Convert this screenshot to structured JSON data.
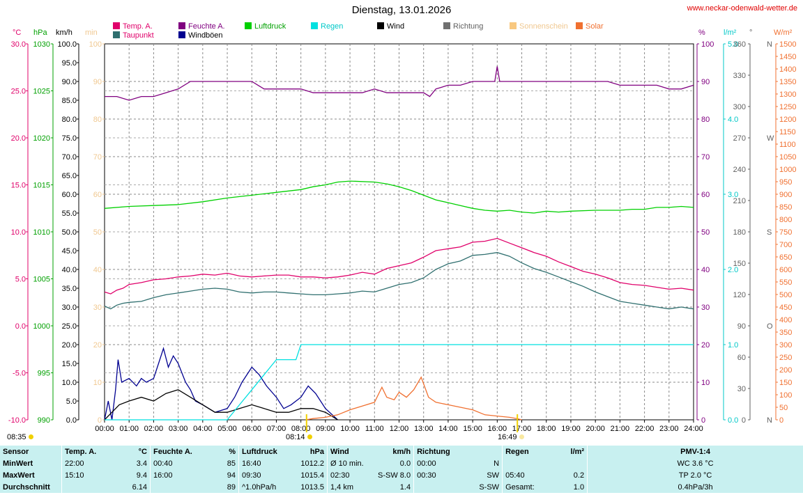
{
  "header": {
    "title": "Dienstag, 13.01.2026",
    "site": "www.neckar-odenwald-wetter.de"
  },
  "legend": [
    {
      "label": "Temp. A.",
      "color": "#e0006a",
      "text_color": "#e0006a"
    },
    {
      "label": "Taupunkt",
      "color": "#2f6f6f",
      "text_color": "#e0006a"
    },
    {
      "label": "Feuchte A.",
      "color": "#800080",
      "text_color": "#800080"
    },
    {
      "label": "Windböen",
      "color": "#000090",
      "text_color": "#000000"
    },
    {
      "label": "Luftdruck",
      "color": "#00d000",
      "text_color": "#00a000"
    },
    {
      "label": "Regen",
      "color": "#00e0e0",
      "text_color": "#00c8c8"
    },
    {
      "label": "Wind",
      "color": "#000000",
      "text_color": "#000000"
    },
    {
      "label": "Richtung",
      "color": "#707070",
      "text_color": "#606060"
    },
    {
      "label": "Sonnenschein",
      "color": "#f8c880",
      "text_color": "#f0c890"
    },
    {
      "label": "Solar",
      "color": "#f07030",
      "text_color": "#f07030"
    }
  ],
  "axes": {
    "units": {
      "temp": "°C",
      "hpa": "hPa",
      "kmh": "km/h",
      "min": "min",
      "pct": "%",
      "lm2": "l/m²",
      "deg": "°",
      "wm2": "W/m²"
    },
    "temp_ticks": [
      "30.0",
      "25.0",
      "20.0",
      "15.0",
      "10.0",
      "5.0",
      "0.0",
      "-5.0",
      "-10.0"
    ],
    "hpa_ticks": [
      "1030",
      "1025",
      "1020",
      "1015",
      "1010",
      "1005",
      "1000",
      "995",
      "990"
    ],
    "kmh_ticks": [
      "100.0",
      "95.0",
      "90.0",
      "85.0",
      "80.0",
      "75.0",
      "70.0",
      "65.0",
      "60.0",
      "55.0",
      "50.0",
      "45.0",
      "40.0",
      "35.0",
      "30.0",
      "25.0",
      "20.0",
      "15.0",
      "10.0",
      "5.0",
      "0.0"
    ],
    "min_ticks": [
      "100",
      "90",
      "80",
      "70",
      "60",
      "50",
      "40",
      "30",
      "20",
      "10",
      "0"
    ],
    "pct_ticks": [
      "100",
      "90",
      "80",
      "70",
      "60",
      "50",
      "40",
      "30",
      "20",
      "10",
      "0"
    ],
    "lm2_ticks": [
      "5.0",
      "4.0",
      "3.0",
      "2.0",
      "1.0",
      "0.0"
    ],
    "deg_ticks": [
      "360",
      "330",
      "300",
      "270",
      "240",
      "210",
      "180",
      "150",
      "120",
      "90",
      "60",
      "30",
      "0"
    ],
    "deg_compass": [
      "N",
      "",
      "",
      "W",
      "",
      "",
      "S",
      "",
      "",
      "O",
      "",
      "",
      "N"
    ],
    "wm2_ticks": [
      "1500",
      "1450",
      "1400",
      "1350",
      "1300",
      "1250",
      "1200",
      "1150",
      "1100",
      "1050",
      "1000",
      "950",
      "900",
      "850",
      "800",
      "750",
      "700",
      "650",
      "600",
      "550",
      "500",
      "450",
      "400",
      "350",
      "300",
      "250",
      "200",
      "150",
      "100",
      "50",
      "0"
    ],
    "time_ticks": [
      "00:00",
      "01:00",
      "02:00",
      "03:00",
      "04:00",
      "05:00",
      "06:00",
      "07:00",
      "08:00",
      "09:00",
      "10:00",
      "11:00",
      "12:00",
      "13:00",
      "14:00",
      "15:00",
      "16:00",
      "17:00",
      "18:00",
      "19:00",
      "20:00",
      "21:00",
      "22:00",
      "23:00",
      "24:00"
    ]
  },
  "markers": {
    "sunrise": "08:14",
    "sunset": "16:49",
    "sunshine": "08:35"
  },
  "chart_data": {
    "type": "line",
    "x_unit": "hours",
    "xlim": [
      0,
      24
    ],
    "series": [
      {
        "name": "Temp. A.",
        "unit": "°C",
        "color": "#e0006a",
        "x": [
          0,
          0.25,
          0.5,
          0.75,
          1,
          1.5,
          2,
          2.5,
          3,
          3.5,
          4,
          4.5,
          5,
          5.5,
          6,
          6.5,
          7,
          7.5,
          8,
          8.5,
          9,
          9.5,
          10,
          10.5,
          11,
          11.5,
          12,
          12.5,
          13,
          13.5,
          14,
          14.5,
          15,
          15.5,
          16,
          16.5,
          17,
          17.5,
          18,
          18.5,
          19,
          19.5,
          20,
          20.5,
          21,
          21.5,
          22,
          22.5,
          23,
          23.5,
          24
        ],
        "y": [
          3.6,
          3.4,
          3.8,
          4.0,
          4.4,
          4.6,
          4.9,
          5.0,
          5.2,
          5.3,
          5.5,
          5.4,
          5.6,
          5.3,
          5.2,
          5.3,
          5.4,
          5.4,
          5.2,
          5.2,
          5.1,
          5.2,
          5.4,
          5.7,
          5.5,
          6.1,
          6.4,
          6.7,
          7.3,
          8.0,
          8.2,
          8.4,
          8.9,
          9.0,
          9.3,
          8.8,
          8.3,
          7.8,
          7.4,
          6.8,
          6.3,
          5.8,
          5.5,
          5.1,
          4.6,
          4.4,
          4.3,
          4.1,
          3.9,
          4.0,
          3.8
        ]
      },
      {
        "name": "Taupunkt",
        "unit": "°C",
        "color": "#2f6f6f",
        "x": [
          0,
          0.25,
          0.5,
          0.75,
          1,
          1.5,
          2,
          2.5,
          3,
          3.5,
          4,
          4.5,
          5,
          5.5,
          6,
          6.5,
          7,
          7.5,
          8,
          8.5,
          9,
          9.5,
          10,
          10.5,
          11,
          11.5,
          12,
          12.5,
          13,
          13.5,
          14,
          14.5,
          15,
          15.5,
          16,
          16.5,
          17,
          17.5,
          18,
          18.5,
          19,
          19.5,
          20,
          20.5,
          21,
          21.5,
          22,
          22.5,
          23,
          23.5,
          24
        ],
        "y": [
          2.1,
          1.8,
          2.2,
          2.4,
          2.5,
          2.6,
          3.0,
          3.3,
          3.5,
          3.7,
          3.9,
          4.0,
          3.9,
          3.6,
          3.5,
          3.6,
          3.6,
          3.5,
          3.4,
          3.3,
          3.3,
          3.4,
          3.5,
          3.7,
          3.6,
          4.0,
          4.4,
          4.6,
          5.1,
          6.0,
          6.6,
          6.9,
          7.5,
          7.6,
          7.8,
          7.4,
          6.7,
          6.1,
          5.7,
          5.2,
          4.7,
          4.2,
          3.6,
          3.1,
          2.6,
          2.4,
          2.2,
          2.0,
          1.8,
          2.0,
          1.8
        ]
      },
      {
        "name": "Feuchte A.",
        "unit": "%",
        "color": "#800080",
        "x": [
          0,
          0.5,
          1,
          1.5,
          2,
          2.5,
          3,
          3.5,
          4,
          4.5,
          5,
          5.5,
          6,
          6.25,
          6.5,
          7,
          7.5,
          8,
          8.5,
          9,
          9.5,
          10,
          10.5,
          11,
          11.5,
          12,
          12.5,
          13,
          13.25,
          13.5,
          14,
          14.5,
          15,
          15.5,
          15.9,
          16,
          16.1,
          16.5,
          17,
          17.5,
          18,
          18.5,
          19,
          19.5,
          20,
          20.5,
          21,
          21.5,
          22,
          22.5,
          23,
          23.5,
          24
        ],
        "y": [
          86,
          86,
          85,
          86,
          86,
          87,
          88,
          90,
          90,
          90,
          90,
          90,
          90,
          89,
          88,
          88,
          88,
          88,
          87,
          87,
          87,
          87,
          87,
          88,
          87,
          87,
          87,
          87,
          86,
          88,
          89,
          89,
          90,
          90,
          90,
          94,
          90,
          90,
          90,
          90,
          90,
          90,
          90,
          90,
          90,
          90,
          89,
          89,
          89,
          89,
          88,
          88,
          89
        ]
      },
      {
        "name": "Luftdruck",
        "unit": "hPa",
        "color": "#00d000",
        "x": [
          0,
          1,
          2,
          3,
          4,
          5,
          6,
          7,
          8,
          8.5,
          9,
          9.5,
          10,
          11,
          11.5,
          12,
          12.5,
          13,
          13.5,
          14,
          14.5,
          15,
          15.5,
          16,
          16.5,
          17,
          17.5,
          18,
          18.5,
          19,
          20,
          21,
          21.5,
          22,
          22.5,
          23,
          23.5,
          24
        ],
        "y": [
          1012.5,
          1012.7,
          1012.8,
          1012.9,
          1013.2,
          1013.6,
          1013.9,
          1014.2,
          1014.5,
          1014.8,
          1015.0,
          1015.3,
          1015.4,
          1015.3,
          1015.1,
          1014.8,
          1014.4,
          1013.9,
          1013.4,
          1013.1,
          1012.8,
          1012.5,
          1012.3,
          1012.2,
          1012.3,
          1012.1,
          1012.0,
          1012.2,
          1012.1,
          1012.2,
          1012.3,
          1012.3,
          1012.4,
          1012.4,
          1012.6,
          1012.6,
          1012.7,
          1012.6
        ]
      },
      {
        "name": "Windböen",
        "unit": "km/h",
        "color": "#000090",
        "x": [
          0,
          0.15,
          0.3,
          0.45,
          0.55,
          0.7,
          1,
          1.3,
          1.5,
          1.7,
          2,
          2.2,
          2.4,
          2.6,
          2.8,
          3,
          3.3,
          3.5,
          3.7,
          4,
          4.5,
          5,
          5.3,
          5.6,
          6,
          6.3,
          6.6,
          7,
          7.3,
          7.6,
          8,
          8.3,
          8.6,
          9,
          9.5
        ],
        "y": [
          0,
          5,
          0,
          8,
          16,
          10,
          11,
          9,
          11,
          10,
          11,
          15,
          19,
          14,
          17,
          15,
          10,
          8,
          5,
          4,
          2,
          3,
          6,
          10,
          14,
          12,
          9,
          6,
          3,
          4,
          6,
          9,
          7,
          3,
          0
        ]
      },
      {
        "name": "Wind",
        "unit": "km/h",
        "color": "#000000",
        "x": [
          0,
          0.3,
          0.6,
          1,
          1.5,
          2,
          2.5,
          3,
          3.5,
          4,
          4.5,
          5,
          5.5,
          6,
          6.5,
          7,
          7.5,
          8,
          8.5,
          9,
          9.5
        ],
        "y": [
          0,
          2,
          4,
          5,
          6,
          5,
          7,
          8,
          6,
          4,
          2,
          2,
          3,
          4,
          3,
          2,
          2,
          3,
          3,
          2,
          0
        ]
      },
      {
        "name": "Regen",
        "unit": "l/m²",
        "color": "#00e0e0",
        "x": [
          0,
          5.0,
          5.5,
          6,
          6.5,
          7,
          7.5,
          7.8,
          8,
          9,
          24
        ],
        "y": [
          0,
          0,
          0.2,
          0.4,
          0.6,
          0.8,
          0.8,
          0.8,
          1.0,
          1.0,
          1.0
        ]
      },
      {
        "name": "Solar",
        "unit": "W/m²",
        "color": "#f07030",
        "x": [
          8.2,
          8.5,
          9,
          9.5,
          10,
          10.5,
          11,
          11.3,
          11.5,
          11.8,
          12,
          12.3,
          12.6,
          12.9,
          13.2,
          13.5,
          14,
          14.5,
          15,
          15.5,
          16,
          16.5,
          16.8,
          17
        ],
        "y": [
          0,
          5,
          10,
          20,
          40,
          55,
          70,
          130,
          90,
          80,
          110,
          90,
          120,
          170,
          90,
          70,
          60,
          50,
          40,
          20,
          15,
          10,
          5,
          0
        ]
      }
    ]
  },
  "stats": {
    "headers": [
      "Sensor",
      "Temp. A.",
      "°C",
      "Feuchte A.",
      "%",
      "Luftdruck",
      "hPa",
      "Wind",
      "km/h",
      "Richtung",
      "",
      "Regen",
      "l/m²",
      "PMV-1:4"
    ],
    "rows": [
      {
        "label": "MinWert",
        "t_time": "22:00",
        "t_val": "3.4",
        "h_time": "00:40",
        "h_val": "85",
        "p_time": "16:40",
        "p_val": "1012.2",
        "w_time": "Ø 10 min.",
        "w_val": "0.0",
        "d_time": "00:00",
        "d_val": "N",
        "r_time": "",
        "r_val": "",
        "pmv": "WC 3.6 °C"
      },
      {
        "label": "MaxWert",
        "t_time": "15:10",
        "t_val": "9.4",
        "h_time": "16:00",
        "h_val": "94",
        "p_time": "09:30",
        "p_val": "1015.4",
        "w_time": "02:30",
        "w_val": "S-SW 8.0",
        "d_time": "00:30",
        "d_val": "SW",
        "r_time": "05:40",
        "r_val": "0.2",
        "pmv": "TP 2.0 °C"
      },
      {
        "label": "Durchschnitt",
        "t_time": "",
        "t_val": "6.14",
        "h_time": "",
        "h_val": "89",
        "p_time": "^1.0hPa/h",
        "p_val": "1013.5",
        "w_time": "1,4 km",
        "w_val": "1.4",
        "d_time": "",
        "d_val": "S-SW",
        "r_time": "Gesamt:",
        "r_val": "1.0",
        "pmv": "0.4hPa/3h"
      }
    ]
  }
}
